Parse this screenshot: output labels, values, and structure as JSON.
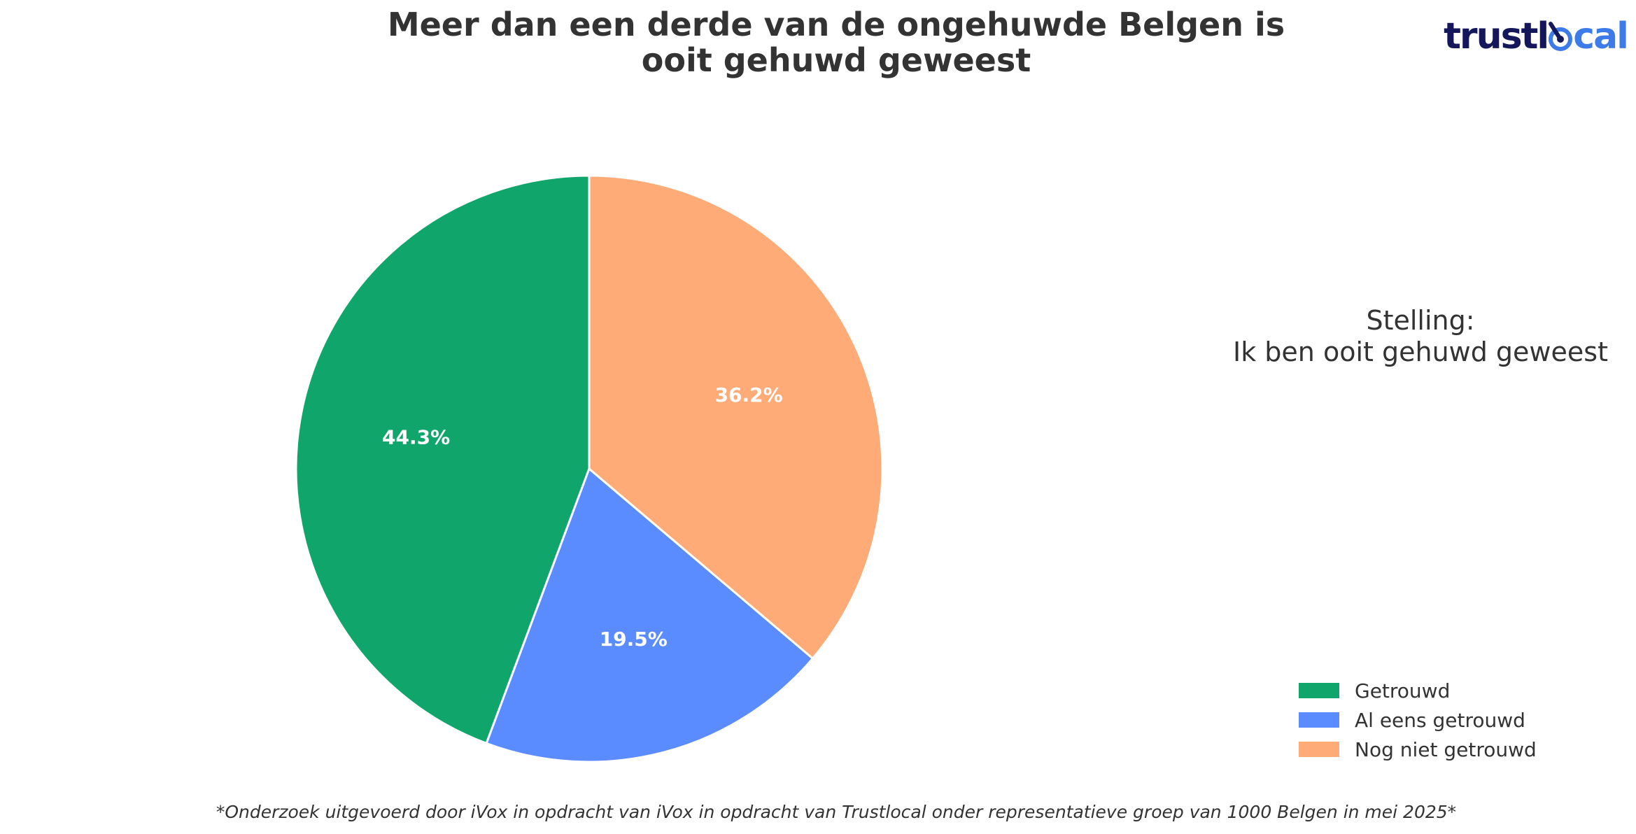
{
  "chart_data": {
    "type": "pie",
    "title_lines": [
      "Meer dan een derde van de ongehuwde Belgen is",
      "ooit gehuwd geweest"
    ],
    "annotation_lines": [
      "Stelling:",
      "Ik ben ooit gehuwd geweest"
    ],
    "categories": [
      "Getrouwd",
      "Al eens getrouwd",
      "Nog niet getrouwd"
    ],
    "values": [
      44.3,
      19.5,
      36.2
    ],
    "value_labels": [
      "44.3%",
      "19.5%",
      "36.2%"
    ],
    "colors": [
      "#10a66b",
      "#5a8bff",
      "#ffab77"
    ],
    "start_angle": "top",
    "direction": "counterclockwise",
    "legend_placement": "lower-right"
  },
  "logo": {
    "part1": "trust",
    "part2": "cal"
  },
  "footnote": "*Onderzoek uitgevoerd door iVox in opdracht van iVox in opdracht van Trustlocal onder representatieve groep van 1000 Belgen in mei 2025*"
}
